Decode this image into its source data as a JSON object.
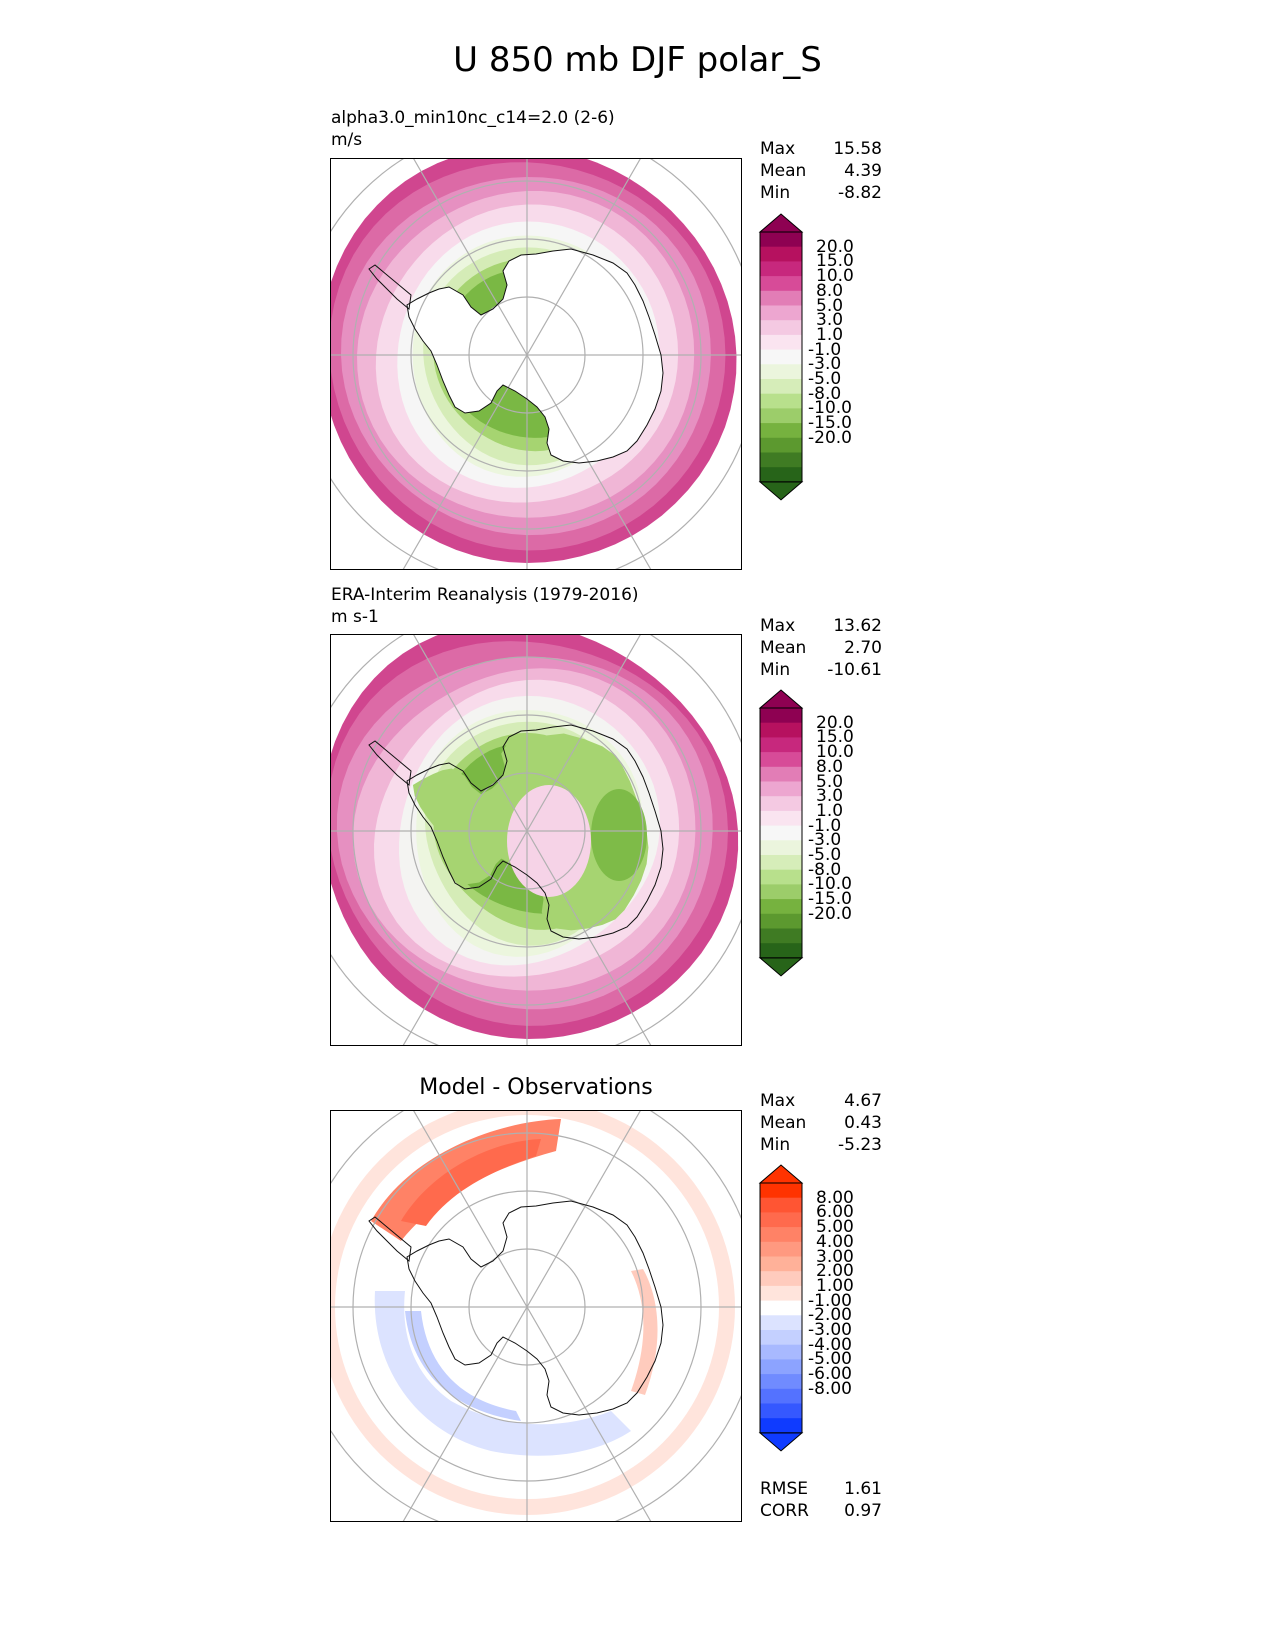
{
  "title": "U 850 mb DJF polar_S",
  "panels": [
    {
      "id": "model",
      "title_line1": "alpha3.0_min10nc_c14=2.0 (2-6)",
      "title_line2": "m/s",
      "stats": [
        {
          "label": "Max",
          "value": "15.58"
        },
        {
          "label": "Mean",
          "value": "4.39"
        },
        {
          "label": "Min",
          "value": "-8.82"
        }
      ],
      "colorbar": {
        "ticks": [
          "20.0",
          "15.0",
          "10.0",
          "8.0",
          "5.0",
          "3.0",
          "1.0",
          "-1.0",
          "-3.0",
          "-5.0",
          "-8.0",
          "-10.0",
          "-15.0",
          "-20.0"
        ],
        "colors": [
          "#8e0152",
          "#b6115f",
          "#c7287d",
          "#d74b98",
          "#e27db6",
          "#eda6d0",
          "#f4c9e2",
          "#fae4f0",
          "#f7f7f7",
          "#ebf5dd",
          "#d6edb9",
          "#b8e08c",
          "#9ccd6a",
          "#76b23f",
          "#5c992f",
          "#3f7b23",
          "#276419"
        ],
        "max_color": "#8e0152",
        "min_color": "#276419"
      },
      "map_levels": [
        {
          "value": 15,
          "color": "#d0468f"
        },
        {
          "value": 12,
          "color": "#dc6aa6"
        },
        {
          "value": 9,
          "color": "#e690c1"
        },
        {
          "value": 6,
          "color": "#f0b6d6"
        },
        {
          "value": 3,
          "color": "#f8dbeb"
        },
        {
          "value": 1,
          "color": "#f6f6f6"
        },
        {
          "value": -1,
          "color": "#ecf6de"
        },
        {
          "value": -3,
          "color": "#d5ecb7"
        },
        {
          "value": -6,
          "color": "#a6d471"
        },
        {
          "value": -8,
          "color": "#7ab844"
        }
      ]
    },
    {
      "id": "obs",
      "title_line1": "ERA-Interim Reanalysis (1979-2016)",
      "title_line2": "m s-1",
      "stats": [
        {
          "label": "Max",
          "value": "13.62"
        },
        {
          "label": "Mean",
          "value": "2.70"
        },
        {
          "label": "Min",
          "value": "-10.61"
        }
      ],
      "colorbar": {
        "ticks": [
          "20.0",
          "15.0",
          "10.0",
          "8.0",
          "5.0",
          "3.0",
          "1.0",
          "-1.0",
          "-3.0",
          "-5.0",
          "-8.0",
          "-10.0",
          "-15.0",
          "-20.0"
        ],
        "colors": [
          "#8e0152",
          "#b6115f",
          "#c7287d",
          "#d74b98",
          "#e27db6",
          "#eda6d0",
          "#f4c9e2",
          "#fae4f0",
          "#f7f7f7",
          "#ebf5dd",
          "#d6edb9",
          "#b8e08c",
          "#9ccd6a",
          "#76b23f",
          "#5c992f",
          "#3f7b23",
          "#276419"
        ],
        "max_color": "#8e0152",
        "min_color": "#276419"
      },
      "map_levels": [
        {
          "value": 13,
          "color": "#d0468f"
        },
        {
          "value": 10,
          "color": "#dc6aa6"
        },
        {
          "value": 8,
          "color": "#e690c1"
        },
        {
          "value": 5,
          "color": "#f0b6d6"
        },
        {
          "value": 2,
          "color": "#f8dbeb"
        },
        {
          "value": 0,
          "color": "#f4f4f2"
        },
        {
          "value": -1,
          "color": "#ecf6de"
        },
        {
          "value": -3,
          "color": "#d5ecb7"
        },
        {
          "value": -6,
          "color": "#a6d471"
        },
        {
          "value": -10,
          "color": "#7ab844"
        }
      ]
    },
    {
      "id": "diff",
      "center_title": "Model - Observations",
      "stats": [
        {
          "label": "Max",
          "value": "4.67"
        },
        {
          "label": "Mean",
          "value": "0.43"
        },
        {
          "label": "Min",
          "value": "-5.23"
        }
      ],
      "colorbar": {
        "ticks": [
          "8.00",
          "6.00",
          "5.00",
          "4.00",
          "3.00",
          "2.00",
          "1.00",
          "-1.00",
          "-2.00",
          "-3.00",
          "-4.00",
          "-5.00",
          "-6.00",
          "-8.00"
        ],
        "colors": [
          "#ff3300",
          "#ff5533",
          "#ff6a4d",
          "#ff8266",
          "#ff9980",
          "#ffb199",
          "#ffcbbd",
          "#ffe4dc",
          "#ffffff",
          "#dce3ff",
          "#c4d0ff",
          "#a8b9ff",
          "#8ca3ff",
          "#708bff",
          "#5472ff",
          "#3558ff",
          "#0f3bff"
        ],
        "max_color": "#ff3300",
        "min_color": "#0f3bff"
      },
      "extra_stats": [
        {
          "label": "RMSE",
          "value": "1.61"
        },
        {
          "label": "CORR",
          "value": "0.97"
        }
      ]
    }
  ]
}
